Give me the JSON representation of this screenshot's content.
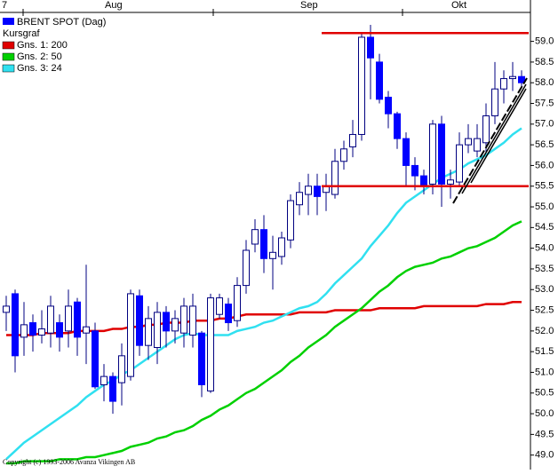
{
  "chart_data": {
    "type": "candlestick",
    "title": "BRENT SPOT (Dag)",
    "legend_heading": "Kursgraf",
    "top_labels": [
      "7",
      "Aug",
      "Sep",
      "Okt"
    ],
    "copyright": "Copyright (c) 1993-2006 Avanza Vikingen AB",
    "candles": {
      "name": "BRENT SPOT (Dag)",
      "color": "#0000ff",
      "open": [
        52.45,
        52.9,
        51.85,
        52.2,
        51.9,
        51.95,
        52.2,
        52.0,
        52.7,
        51.95,
        52.0,
        50.7,
        50.9,
        50.75,
        50.9,
        52.85,
        51.65,
        51.6,
        52.45,
        52.0,
        51.95,
        51.9,
        51.95,
        50.55,
        52.4,
        52.65,
        52.25,
        53.1,
        54.1,
        54.45,
        53.75,
        53.8,
        54.2,
        55.05,
        55.3,
        55.5,
        55.35,
        55.3,
        56.1,
        56.45,
        56.75,
        59.1,
        58.5,
        57.65,
        57.25,
        56.65,
        56.0,
        55.75,
        55.55,
        57.0,
        55.55,
        55.6,
        56.5,
        56.35,
        56.55,
        57.2,
        57.85,
        58.1,
        58.15
      ],
      "high": [
        52.85,
        53.0,
        52.7,
        52.4,
        52.5,
        52.85,
        52.4,
        53.0,
        52.8,
        53.6,
        52.2,
        51.2,
        51.0,
        51.7,
        53.0,
        53.0,
        52.6,
        52.7,
        52.6,
        52.5,
        52.8,
        52.9,
        52.0,
        52.9,
        52.9,
        52.8,
        53.3,
        54.2,
        54.7,
        54.8,
        54.3,
        54.4,
        55.3,
        55.6,
        55.8,
        55.8,
        55.8,
        56.4,
        56.6,
        57.1,
        59.2,
        59.4,
        58.7,
        57.8,
        57.3,
        56.8,
        56.2,
        55.9,
        57.1,
        57.2,
        55.9,
        56.8,
        57.0,
        57.0,
        57.5,
        58.5,
        58.3,
        58.5,
        58.3
      ],
      "low": [
        52.0,
        51.0,
        51.4,
        51.5,
        51.7,
        51.6,
        51.5,
        51.6,
        51.4,
        51.2,
        50.6,
        50.3,
        50.0,
        50.2,
        50.8,
        51.4,
        51.3,
        51.2,
        51.6,
        51.7,
        51.6,
        51.6,
        50.4,
        50.5,
        52.3,
        52.0,
        52.1,
        52.9,
        53.9,
        53.4,
        53.0,
        53.6,
        54.0,
        54.8,
        54.8,
        54.8,
        54.9,
        55.2,
        55.9,
        56.2,
        56.6,
        57.6,
        57.5,
        56.9,
        56.4,
        55.5,
        55.4,
        55.3,
        55.3,
        55.0,
        55.2,
        55.5,
        56.3,
        56.2,
        56.3,
        57.0,
        57.5,
        57.8,
        57.9
      ],
      "close": [
        52.6,
        51.4,
        52.15,
        51.9,
        52.05,
        52.6,
        51.85,
        52.6,
        51.85,
        52.1,
        50.65,
        50.9,
        50.3,
        51.4,
        52.9,
        51.65,
        52.3,
        52.45,
        52.0,
        52.3,
        52.6,
        52.6,
        50.7,
        52.8,
        52.8,
        52.2,
        53.1,
        53.95,
        54.45,
        53.75,
        53.9,
        54.25,
        55.15,
        55.35,
        55.5,
        55.25,
        55.5,
        56.1,
        56.4,
        56.75,
        59.1,
        58.6,
        57.6,
        57.25,
        56.65,
        56.0,
        55.75,
        55.5,
        57.0,
        55.55,
        55.65,
        56.5,
        56.65,
        56.65,
        57.2,
        57.85,
        58.1,
        58.15,
        58.0
      ]
    },
    "series": [
      {
        "name": "Gns. 1: 200",
        "color": "#e00000",
        "values": [
          51.9,
          51.9,
          51.9,
          51.9,
          51.95,
          51.95,
          51.95,
          51.95,
          52.0,
          52.0,
          52.0,
          52.0,
          52.05,
          52.05,
          52.1,
          52.1,
          52.15,
          52.15,
          52.2,
          52.2,
          52.2,
          52.25,
          52.25,
          52.25,
          52.3,
          52.3,
          52.35,
          52.4,
          52.4,
          52.4,
          52.4,
          52.4,
          52.4,
          52.45,
          52.45,
          52.45,
          52.45,
          52.5,
          52.5,
          52.5,
          52.5,
          52.5,
          52.55,
          52.55,
          52.55,
          52.55,
          52.55,
          52.6,
          52.6,
          52.6,
          52.6,
          52.6,
          52.6,
          52.6,
          52.65,
          52.65,
          52.65,
          52.7,
          52.7
        ]
      },
      {
        "name": "Gns. 2: 50",
        "color": "#00d000",
        "values": [
          48.8,
          48.8,
          48.85,
          48.85,
          48.85,
          48.85,
          48.9,
          48.9,
          48.9,
          48.95,
          48.95,
          49.0,
          49.05,
          49.1,
          49.2,
          49.25,
          49.3,
          49.4,
          49.45,
          49.55,
          49.6,
          49.7,
          49.85,
          49.95,
          50.1,
          50.2,
          50.35,
          50.5,
          50.6,
          50.75,
          50.9,
          51.05,
          51.25,
          51.4,
          51.6,
          51.75,
          51.9,
          52.1,
          52.25,
          52.4,
          52.55,
          52.75,
          52.95,
          53.1,
          53.3,
          53.45,
          53.55,
          53.6,
          53.65,
          53.75,
          53.8,
          53.9,
          54.0,
          54.05,
          54.15,
          54.25,
          54.4,
          54.55,
          54.65
        ]
      },
      {
        "name": "Gns. 3: 24",
        "color": "#30e0f0",
        "values": [
          48.9,
          49.1,
          49.3,
          49.45,
          49.6,
          49.75,
          49.9,
          50.05,
          50.2,
          50.4,
          50.55,
          50.7,
          50.8,
          50.95,
          51.05,
          51.2,
          51.35,
          51.5,
          51.65,
          51.8,
          51.9,
          51.95,
          51.9,
          51.9,
          51.9,
          51.9,
          52.0,
          52.05,
          52.1,
          52.2,
          52.25,
          52.35,
          52.45,
          52.55,
          52.6,
          52.7,
          52.9,
          53.15,
          53.35,
          53.55,
          53.75,
          54.05,
          54.3,
          54.55,
          54.85,
          55.1,
          55.25,
          55.4,
          55.55,
          55.7,
          55.8,
          55.9,
          56.05,
          56.15,
          56.25,
          56.4,
          56.55,
          56.75,
          56.9
        ]
      }
    ],
    "levels": {
      "color": "#e00000",
      "values": [
        59.2,
        55.5
      ]
    },
    "ylim": [
      48.65,
      60.0
    ],
    "yticks": [
      {
        "value": 49,
        "label": "49.0"
      },
      49.5,
      {
        "value": 50,
        "label": "50.0"
      },
      50.5,
      {
        "value": 51,
        "label": "51.0"
      },
      51.5,
      {
        "value": 52,
        "label": "52.0"
      },
      52.5,
      {
        "value": 53,
        "label": "53.0"
      },
      53.5,
      {
        "value": 54,
        "label": "54.0"
      },
      54.5,
      {
        "value": 55,
        "label": "55.0"
      },
      55.5,
      {
        "value": 56,
        "label": "56.0"
      },
      56.5,
      {
        "value": 57,
        "label": "57.0"
      },
      57.5,
      {
        "value": 58,
        "label": "58.0"
      },
      58.5,
      {
        "value": 59,
        "label": "59.0"
      }
    ],
    "grid": false
  }
}
